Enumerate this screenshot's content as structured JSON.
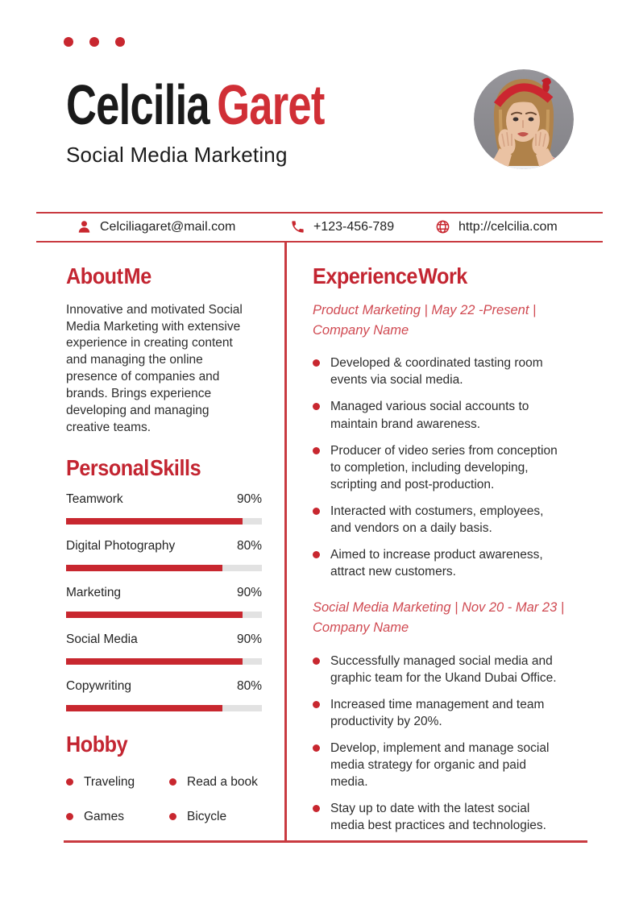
{
  "theme": {
    "accent": "#c8272f",
    "heading_red": "#c32531",
    "name_red": "#d02f36",
    "job_red": "#d04a52",
    "line_red": "#c93a40",
    "bar_track": "#e2e2e2"
  },
  "header": {
    "first_name": "Celcilia",
    "last_name": "Garet",
    "headline": "Social Media Marketing"
  },
  "contact": {
    "email": {
      "icon": "person-icon",
      "value": "Celciliagaret@mail.com"
    },
    "phone": {
      "icon": "phone-icon",
      "value": "+123-456-789"
    },
    "website": {
      "icon": "globe-icon",
      "value": "http://celcilia.com"
    }
  },
  "about": {
    "title": "About Me",
    "text": "Innovative and motivated Social\nMedia Marketing with extensive\nexperience in creating content\nand managing the online\npresence of companies and\nbrands. Brings experience\ndeveloping and managing\ncreative teams."
  },
  "skills": {
    "title": "Personal Skills",
    "items": [
      {
        "label": "Teamwork",
        "percent": 90
      },
      {
        "label": "Digital Photography",
        "percent": 80
      },
      {
        "label": "Marketing",
        "percent": 90
      },
      {
        "label": "Social Media",
        "percent": 90
      },
      {
        "label": "Copywriting",
        "percent": 80
      }
    ]
  },
  "hobby": {
    "title": "Hobby",
    "items": [
      "Traveling",
      "Read a book",
      "Games",
      "Bicycle"
    ]
  },
  "experience": {
    "title": "Experience Work",
    "jobs": [
      {
        "subtitle": "Product Marketing | May 22 -Present |\nCompany Name",
        "bullets": [
          "Developed & coordinated tasting room\nevents via social media.",
          "Managed various social accounts to\nmaintain brand awareness.",
          "Producer of video series from conception\nto completion, including developing,\nscripting and post-production.",
          "Interacted with costumers, employees,\nand vendors on a daily basis.",
          "Aimed to increase product awareness,\nattract new customers."
        ]
      },
      {
        "subtitle": "Social Media Marketing | Nov 20 - Mar 23 |\nCompany Name",
        "bullets": [
          "Successfully managed social media and\ngraphic team for the Ukand Dubai Office.",
          "Increased time management and team\nproductivity by 20%.",
          "Develop, implement and manage social\nmedia strategy for organic and paid\nmedia.",
          "Stay up to date with the latest social\nmedia best practices and technologies."
        ]
      }
    ]
  }
}
